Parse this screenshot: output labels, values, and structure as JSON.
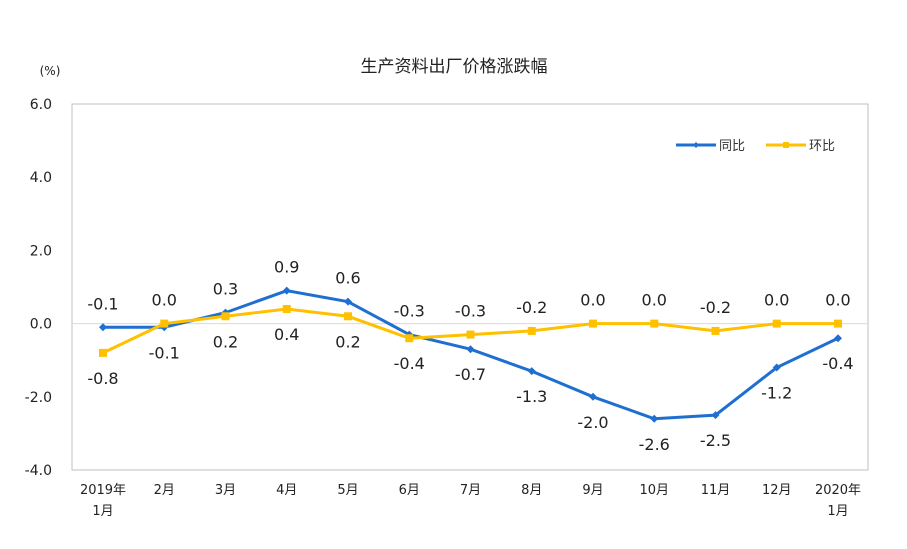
{
  "chart_data": {
    "type": "line",
    "title": "生产资料出厂价格涨跌幅",
    "ylabel": "(%)",
    "xlabel": "",
    "ylim": [
      -4.0,
      6.0
    ],
    "yticks": [
      "6.0",
      "4.0",
      "2.0",
      "0.0",
      "-2.0",
      "-4.0"
    ],
    "ytick_values": [
      6,
      4,
      2,
      0,
      -2,
      -4
    ],
    "grid": false,
    "legend_position": "top-right",
    "categories": [
      [
        "2019年",
        "1月"
      ],
      [
        "2月"
      ],
      [
        "3月"
      ],
      [
        "4月"
      ],
      [
        "5月"
      ],
      [
        "6月"
      ],
      [
        "7月"
      ],
      [
        "8月"
      ],
      [
        "9月"
      ],
      [
        "10月"
      ],
      [
        "11月"
      ],
      [
        "12月"
      ],
      [
        "2020年",
        "1月"
      ]
    ],
    "series": [
      {
        "name": "同比",
        "color": "#1f6fd1",
        "marker": "diamond",
        "values": [
          -0.1,
          -0.1,
          0.3,
          0.9,
          0.6,
          -0.3,
          -0.7,
          -1.3,
          -2.0,
          -2.6,
          -2.5,
          -1.2,
          -0.4
        ]
      },
      {
        "name": "环比",
        "color": "#ffc000",
        "marker": "square",
        "values": [
          -0.8,
          0.0,
          0.2,
          0.4,
          0.2,
          -0.4,
          -0.3,
          -0.2,
          0.0,
          0.0,
          -0.2,
          0.0,
          0.0
        ]
      }
    ]
  }
}
